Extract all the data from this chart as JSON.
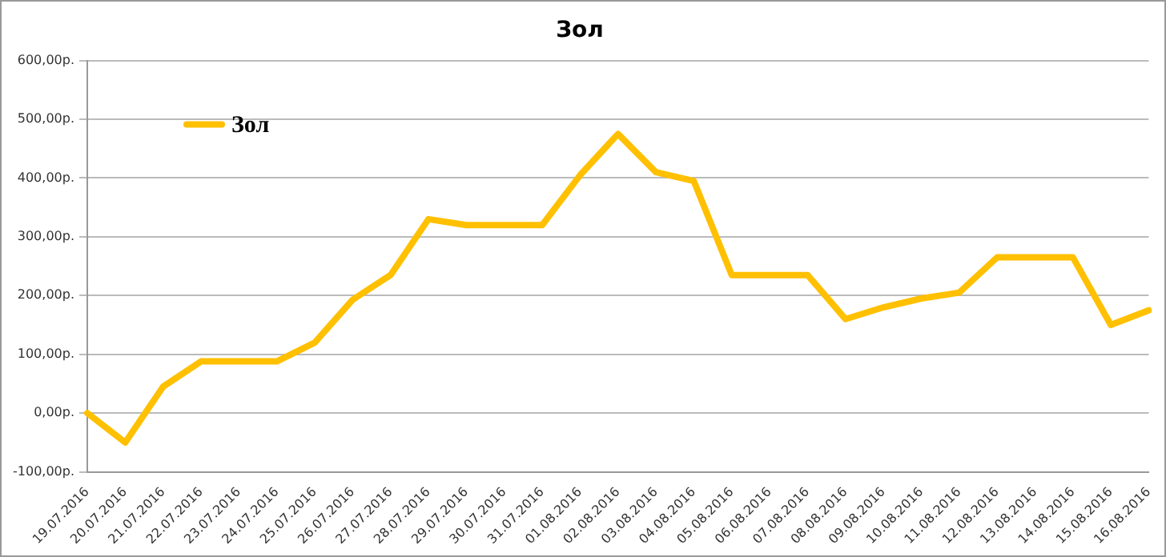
{
  "chart_data": {
    "type": "line",
    "title": "Зол",
    "categories": [
      "19.07.2016",
      "20.07.2016",
      "21.07.2016",
      "22.07.2016",
      "23.07.2016",
      "24.07.2016",
      "25.07.2016",
      "26.07.2016",
      "27.07.2016",
      "28.07.2016",
      "29.07.2016",
      "30.07.2016",
      "31.07.2016",
      "01.08.2016",
      "02.08.2016",
      "03.08.2016",
      "04.08.2016",
      "05.08.2016",
      "06.08.2016",
      "07.08.2016",
      "08.08.2016",
      "09.08.2016",
      "10.08.2016",
      "11.08.2016",
      "12.08.2016",
      "13.08.2016",
      "14.08.2016",
      "15.08.2016",
      "16.08.2016"
    ],
    "series": [
      {
        "name": "Зол",
        "color": "#ffc000",
        "values": [
          0,
          -50,
          45,
          88,
          88,
          88,
          120,
          193,
          235,
          330,
          320,
          320,
          320,
          405,
          475,
          410,
          395,
          235,
          235,
          235,
          160,
          180,
          195,
          205,
          265,
          265,
          265,
          150,
          175
        ]
      }
    ],
    "ylim": [
      -100,
      600
    ],
    "yticks": [
      {
        "value": -100,
        "label": "-100,00р."
      },
      {
        "value": 0,
        "label": "0,00р."
      },
      {
        "value": 100,
        "label": "100,00р."
      },
      {
        "value": 200,
        "label": "200,00р."
      },
      {
        "value": 300,
        "label": "300,00р."
      },
      {
        "value": 400,
        "label": "400,00р."
      },
      {
        "value": 500,
        "label": "500,00р."
      },
      {
        "value": 600,
        "label": "600,00р."
      }
    ],
    "grid": "y",
    "legend": "top left",
    "marker": "none",
    "line_style": "solid"
  }
}
